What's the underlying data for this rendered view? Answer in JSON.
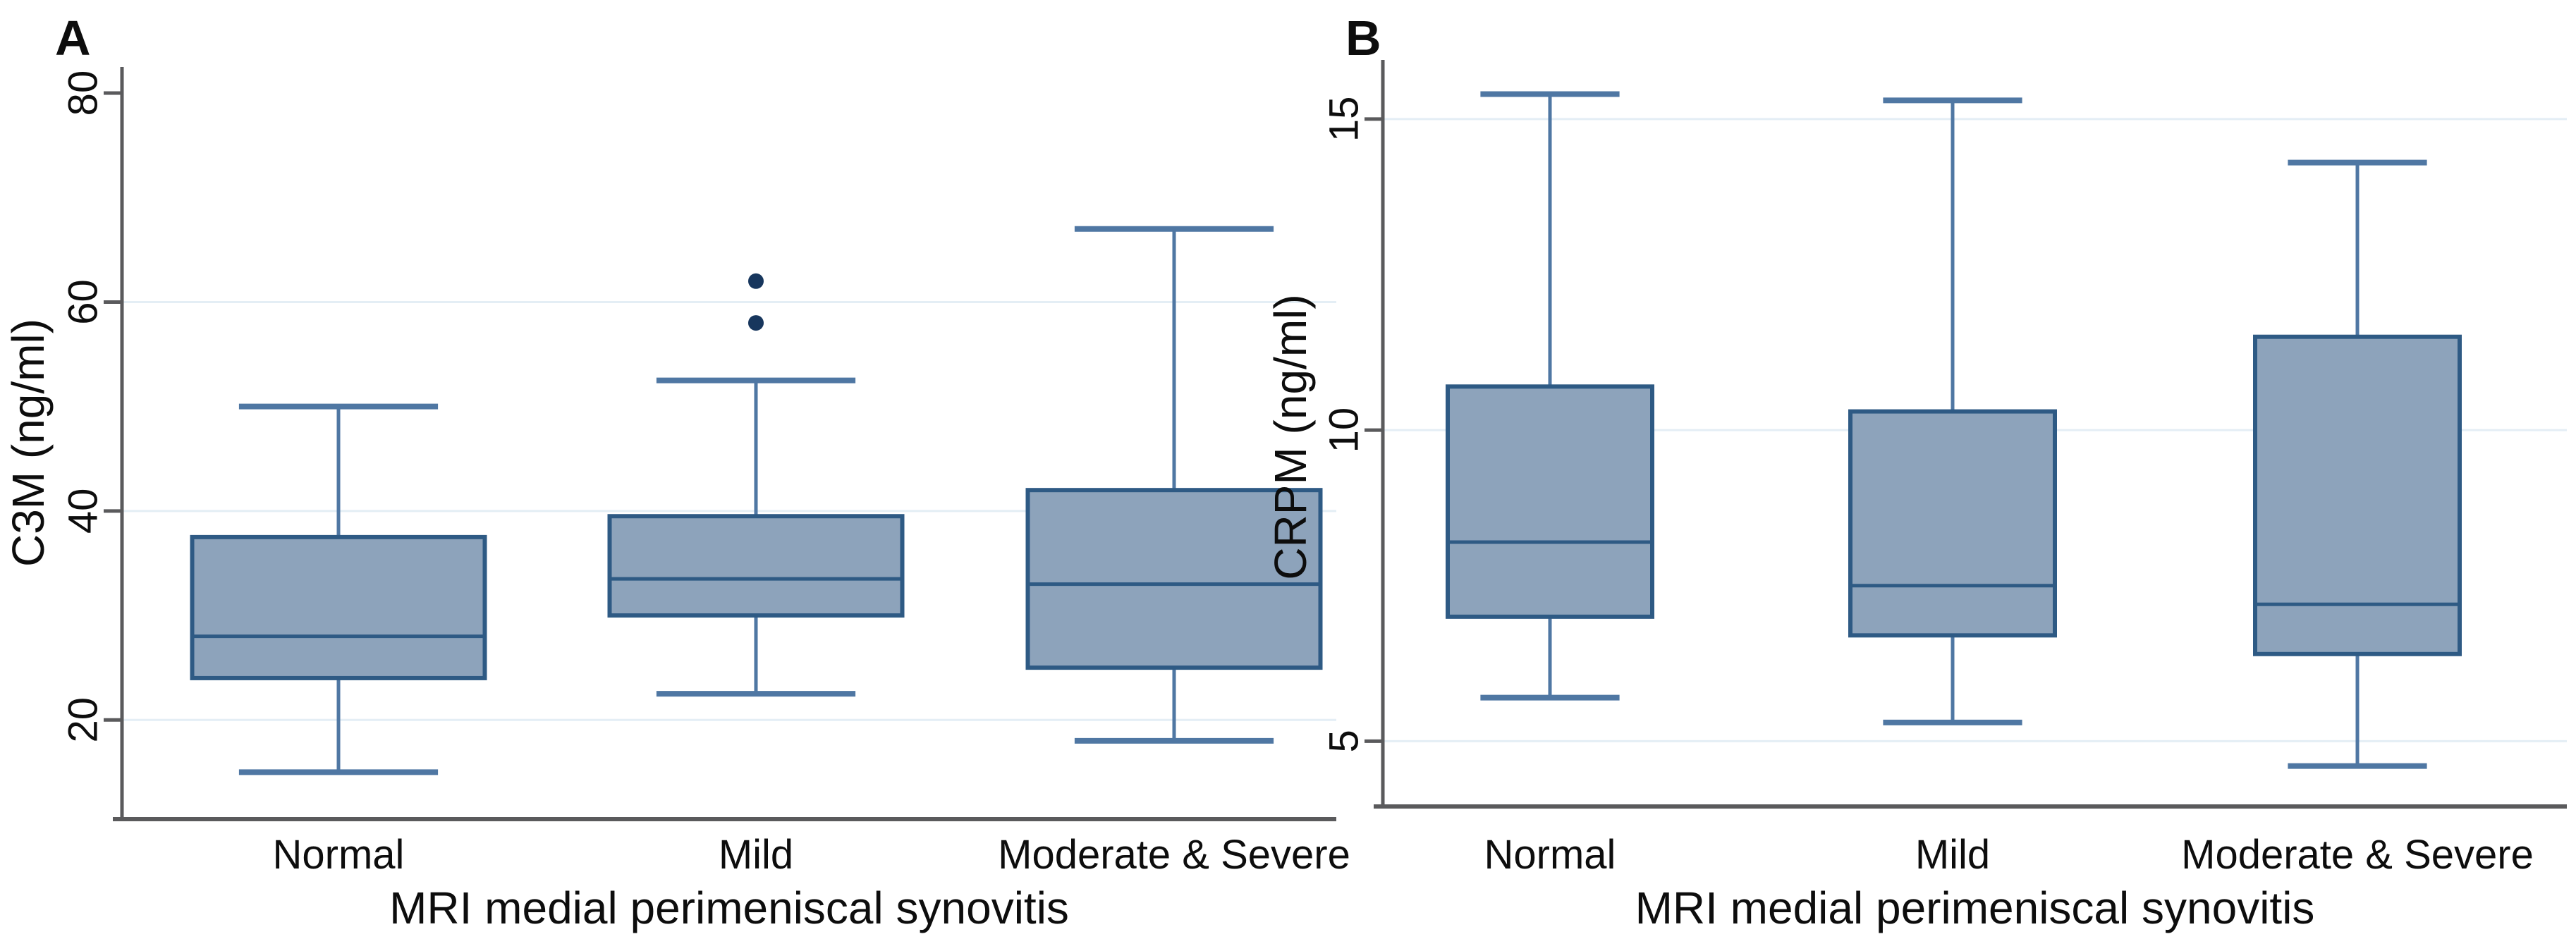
{
  "figure": {
    "description": "Two-panel box plot figure comparing biomarker levels across MRI medial perimeniscal synovitis grades",
    "background_color": "#ffffff"
  },
  "colors": {
    "box_fill": "#8da3bb",
    "box_border": "#2e5a84",
    "median_line": "#2e5a84",
    "whisker": "#4f77a3",
    "outlier_dot": "#17365d",
    "gridline": "#e4eef5",
    "axis_line": "#5a5a5c",
    "tick_mark": "#5a5a5c",
    "text": "#0d0d0d",
    "panel_letter": "#1f3864"
  },
  "chart_data": [
    {
      "type": "box",
      "panel_label": "A",
      "xlabel": "MRI medial perimeniscal synovitis",
      "ylabel": "C3M (ng/ml)",
      "categories": [
        "Normal",
        "Mild",
        "Moderate & Severe"
      ],
      "y_ticks": [
        20,
        40,
        60,
        80
      ],
      "grid_ticks": [
        20,
        40,
        60
      ],
      "ylim": [
        10.5,
        82.5
      ],
      "legend": "none",
      "grid": true,
      "series": [
        {
          "category": "Normal",
          "whisker_low": 15,
          "q1": 24,
          "median": 28,
          "q3": 37.5,
          "whisker_high": 50,
          "outliers": []
        },
        {
          "category": "Mild",
          "whisker_low": 22.5,
          "q1": 30,
          "median": 33.5,
          "q3": 39.5,
          "whisker_high": 52.5,
          "outliers": [
            58,
            62
          ]
        },
        {
          "category": "Moderate & Severe",
          "whisker_low": 18,
          "q1": 25,
          "median": 33,
          "q3": 42,
          "whisker_high": 67,
          "outliers": []
        }
      ]
    },
    {
      "type": "box",
      "panel_label": "B",
      "xlabel": "MRI medial perimeniscal synovitis",
      "ylabel": "CRPM (ng/ml)",
      "categories": [
        "Normal",
        "Mild",
        "Moderate & Severe"
      ],
      "y_ticks": [
        5,
        10,
        15
      ],
      "grid_ticks": [
        5,
        10,
        15
      ],
      "ylim": [
        3.95,
        15.95
      ],
      "legend": "none",
      "grid": true,
      "series": [
        {
          "category": "Normal",
          "whisker_low": 5.7,
          "q1": 7.0,
          "median": 8.2,
          "q3": 10.7,
          "whisker_high": 15.4,
          "outliers": []
        },
        {
          "category": "Mild",
          "whisker_low": 5.3,
          "q1": 6.7,
          "median": 7.5,
          "q3": 10.3,
          "whisker_high": 15.3,
          "outliers": []
        },
        {
          "category": "Moderate & Severe",
          "whisker_low": 4.6,
          "q1": 6.4,
          "median": 7.2,
          "q3": 11.5,
          "whisker_high": 14.3,
          "outliers": []
        }
      ]
    }
  ]
}
